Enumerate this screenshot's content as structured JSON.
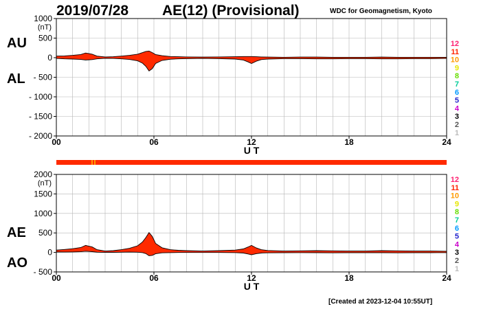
{
  "header": {
    "date": "2019/07/28",
    "title": "AE(12) (Provisional)",
    "source": "WDC for Geomagnetism, Kyoto"
  },
  "footer": {
    "created": "[Created at 2023-12-04 10:55UT]"
  },
  "station_numbers": [
    "12",
    "11",
    "10",
    "9",
    "8",
    "7",
    "6",
    "5",
    "4",
    "3",
    "2",
    "1"
  ],
  "station_colors": [
    "#ff1f6f",
    "#ff2200",
    "#ff9900",
    "#e6e600",
    "#66dd00",
    "#00cc99",
    "#0099ff",
    "#2222cc",
    "#cc00cc",
    "#000000",
    "#555555",
    "#bbbbbb"
  ],
  "fill_color": "#ff2a00",
  "chart_data": [
    {
      "type": "area",
      "panel": "AU/AL",
      "series_labels": [
        "AU",
        "AL"
      ],
      "unit": "(nT)",
      "xlabel": "U T",
      "ylim": [
        -2000,
        1000
      ],
      "yticks": [
        1000,
        500,
        0,
        -500,
        -1000,
        -1500,
        -2000
      ],
      "ytick_labels": [
        "1000",
        "500",
        "0",
        "- 500",
        "- 1000",
        "- 1500",
        "- 2000"
      ],
      "xlim": [
        0,
        24
      ],
      "xticks": [
        0,
        6,
        12,
        18,
        24
      ],
      "xtick_labels": [
        "00",
        "06",
        "12",
        "18",
        "24"
      ],
      "grid": true,
      "x": [
        0,
        0.5,
        1,
        1.5,
        1.8,
        2.2,
        2.5,
        3,
        3.5,
        4,
        4.5,
        5,
        5.3,
        5.5,
        5.7,
        5.9,
        6.1,
        6.5,
        7,
        7.5,
        8,
        9,
        10,
        11,
        11.5,
        11.8,
        12,
        12.3,
        12.6,
        13,
        14,
        15,
        16,
        17,
        18,
        19,
        20,
        21,
        22,
        23,
        24
      ],
      "series": [
        {
          "name": "AU",
          "values": [
            40,
            45,
            60,
            80,
            120,
            90,
            40,
            20,
            25,
            40,
            60,
            90,
            130,
            160,
            170,
            130,
            80,
            50,
            30,
            25,
            20,
            15,
            20,
            25,
            30,
            30,
            30,
            25,
            20,
            15,
            10,
            15,
            15,
            10,
            10,
            10,
            15,
            10,
            10,
            10,
            10
          ]
        },
        {
          "name": "AL",
          "values": [
            -20,
            -30,
            -35,
            -45,
            -60,
            -50,
            -30,
            -15,
            -20,
            -30,
            -45,
            -80,
            -140,
            -220,
            -340,
            -280,
            -150,
            -70,
            -40,
            -30,
            -25,
            -20,
            -25,
            -35,
            -60,
            -110,
            -150,
            -90,
            -50,
            -35,
            -25,
            -25,
            -30,
            -30,
            -25,
            -25,
            -30,
            -30,
            -25,
            -25,
            -20
          ]
        }
      ]
    },
    {
      "type": "area",
      "panel": "AE/AO",
      "series_labels": [
        "AE",
        "AO"
      ],
      "unit": "(nT)",
      "xlabel": "U T",
      "ylim": [
        -500,
        2000
      ],
      "yticks": [
        2000,
        1500,
        1000,
        500,
        0,
        -500
      ],
      "ytick_labels": [
        "2000",
        "1500",
        "1000",
        "500",
        "0",
        "- 500"
      ],
      "xlim": [
        0,
        24
      ],
      "xticks": [
        0,
        6,
        12,
        18,
        24
      ],
      "xtick_labels": [
        "00",
        "06",
        "12",
        "18",
        "24"
      ],
      "grid": true,
      "x": [
        0,
        0.5,
        1,
        1.5,
        1.8,
        2.2,
        2.5,
        3,
        3.5,
        4,
        4.5,
        5,
        5.3,
        5.5,
        5.7,
        5.9,
        6.1,
        6.5,
        7,
        7.5,
        8,
        9,
        10,
        11,
        11.5,
        11.8,
        12,
        12.3,
        12.6,
        13,
        14,
        15,
        16,
        17,
        18,
        19,
        20,
        21,
        22,
        23,
        24
      ],
      "series": [
        {
          "name": "AE",
          "values": [
            60,
            75,
            95,
            125,
            180,
            140,
            70,
            35,
            45,
            70,
            105,
            170,
            270,
            380,
            510,
            410,
            230,
            120,
            70,
            55,
            45,
            35,
            45,
            60,
            90,
            140,
            180,
            115,
            70,
            50,
            35,
            40,
            45,
            40,
            35,
            35,
            45,
            40,
            35,
            35,
            30
          ]
        },
        {
          "name": "AO",
          "values": [
            10,
            8,
            12,
            18,
            30,
            20,
            5,
            2,
            2,
            5,
            8,
            5,
            -5,
            -30,
            -85,
            -75,
            -35,
            -10,
            -5,
            -2,
            -2,
            -2,
            -2,
            -5,
            -15,
            -40,
            -60,
            -32,
            -15,
            -10,
            -7,
            -5,
            -7,
            -10,
            -7,
            -7,
            -7,
            -10,
            -7,
            -7,
            -5
          ]
        }
      ]
    }
  ]
}
